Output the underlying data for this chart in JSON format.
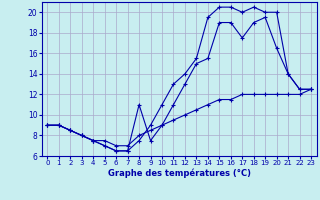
{
  "title": "Graphe des températures (°C)",
  "background_color": "#c8eef0",
  "grid_color": "#aaaacc",
  "line_color": "#0000aa",
  "xlim": [
    -0.5,
    23.5
  ],
  "ylim": [
    6,
    21
  ],
  "xticks": [
    0,
    1,
    2,
    3,
    4,
    5,
    6,
    7,
    8,
    9,
    10,
    11,
    12,
    13,
    14,
    15,
    16,
    17,
    18,
    19,
    20,
    21,
    22,
    23
  ],
  "yticks": [
    6,
    8,
    10,
    12,
    14,
    16,
    18,
    20
  ],
  "curve1_x": [
    0,
    1,
    2,
    3,
    4,
    5,
    6,
    7,
    8,
    9,
    10,
    11,
    12,
    13,
    14,
    15,
    16,
    17,
    18,
    19,
    20,
    21,
    22,
    23
  ],
  "curve1_y": [
    9,
    9,
    8.5,
    8,
    7.5,
    7,
    6.5,
    6.5,
    7.5,
    9,
    11,
    13,
    14,
    15.5,
    19.5,
    20.5,
    20.5,
    20,
    20.5,
    20,
    20,
    14,
    12.5,
    12.5
  ],
  "curve2_x": [
    0,
    1,
    2,
    3,
    4,
    5,
    6,
    7,
    8,
    9,
    10,
    11,
    12,
    13,
    14,
    15,
    16,
    17,
    18,
    19,
    20,
    21,
    22,
    23
  ],
  "curve2_y": [
    9,
    9,
    8.5,
    8,
    7.5,
    7,
    6.5,
    6.5,
    11,
    7.5,
    9,
    11,
    13,
    15,
    15.5,
    19,
    19,
    17.5,
    19,
    19.5,
    16.5,
    14,
    12.5,
    12.5
  ],
  "curve3_x": [
    0,
    1,
    2,
    3,
    4,
    5,
    6,
    7,
    8,
    9,
    10,
    11,
    12,
    13,
    14,
    15,
    16,
    17,
    18,
    19,
    20,
    21,
    22,
    23
  ],
  "curve3_y": [
    9,
    9,
    8.5,
    8,
    7.5,
    7.5,
    7,
    7,
    8,
    8.5,
    9,
    9.5,
    10,
    10.5,
    11,
    11.5,
    11.5,
    12,
    12,
    12,
    12,
    12,
    12,
    12.5
  ]
}
